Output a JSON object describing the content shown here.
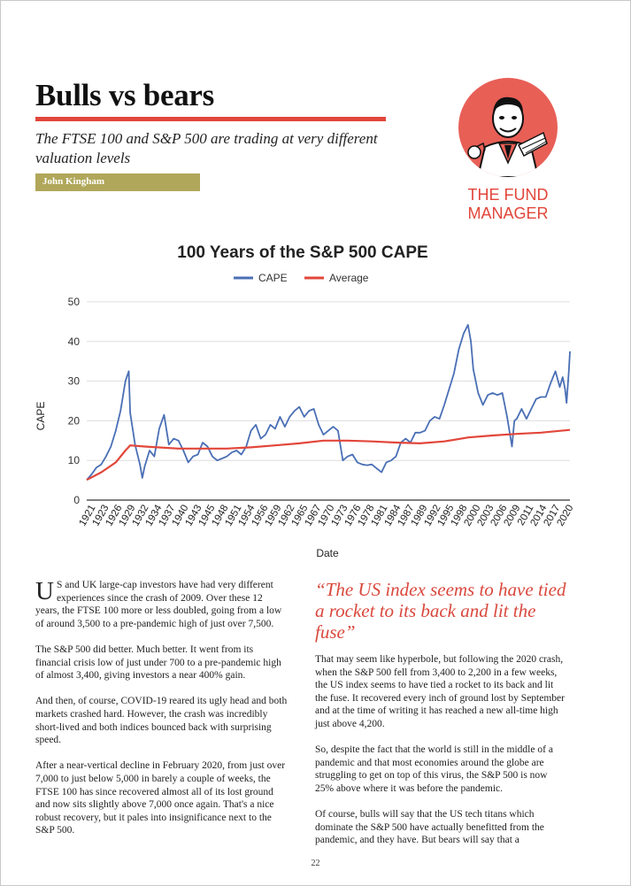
{
  "article": {
    "headline": "Bulls vs bears",
    "standfirst": "The FTSE 100 and S&P 500 are trading at very different valuation levels",
    "byline": "John Kingham",
    "pull_quote": "“The US index seems to have tied a rocket to its back and lit the fuse”",
    "page_number": "22"
  },
  "logo": {
    "text": "THE FUND MANAGER",
    "icon": "fund-manager-cartoon-icon",
    "color": "#e2463a"
  },
  "body": {
    "left": {
      "drop_cap": "U",
      "p1": "S and UK large-cap investors have had very different experiences since the crash of 2009. Over these 12 years, the FTSE 100 more or less doubled, going from a low of around 3,500 to a pre-pandemic high of just over 7,500.",
      "p2": "The S&P 500 did better. Much better. It went from its financial crisis low of just under 700 to a pre-pandemic high of almost 3,400, giving investors a near 400% gain.",
      "p3": "And then, of course, COVID-19 reared its ugly head and both markets crashed hard. However, the crash was incredibly short-lived and both indices bounced back with surprising speed.",
      "p4": "After a near-vertical decline in February 2020, from just over 7,000 to just below 5,000 in barely a couple of weeks, the FTSE 100 has since recovered almost all of its lost ground and now sits slightly above 7,000 once again. That's a nice robust recovery, but it pales into insignificance next to the S&P 500."
    },
    "right": {
      "p1": "That may seem like hyperbole, but following the 2020 crash, when the S&P 500 fell from 3,400 to 2,200 in a few weeks, the US index seems to have tied a rocket to its back and lit the fuse. It recovered every inch of ground lost by September and at the time of writing it has reached a new all-time high just above 4,200.",
      "p2": "So, despite the fact that the world is still in the middle of a pandemic and that most economies around the globe are struggling to get on top of this virus, the S&P 500 is now 25% above where it was before the pandemic.",
      "p3": "Of course, bulls will say that the US tech titans which dominate the S&P 500 have actually benefitted from the pandemic, and they have. But bears will say that a"
    }
  },
  "chart_data": {
    "type": "line",
    "title": "100 Years of the S&P 500 CAPE",
    "xlabel": "Date",
    "ylabel": "CAPE",
    "ylim": [
      0,
      50
    ],
    "yticks": [
      0,
      10,
      20,
      30,
      40,
      50
    ],
    "xlim": [
      1921,
      2021
    ],
    "xticks": [
      "1921",
      "1923",
      "1926",
      "1929",
      "1932",
      "1934",
      "1937",
      "1940",
      "1943",
      "1945",
      "1948",
      "1951",
      "1954",
      "1956",
      "1959",
      "1962",
      "1965",
      "1967",
      "1970",
      "1973",
      "1976",
      "1978",
      "1981",
      "1984",
      "1987",
      "1989",
      "1992",
      "1995",
      "1998",
      "2000",
      "2003",
      "2006",
      "2009",
      "2011",
      "2014",
      "2017",
      "2020"
    ],
    "grid": true,
    "legend_position": "top-center",
    "series": [
      {
        "name": "CAPE",
        "color": "#4a6fb5",
        "x": [
          1921,
          1922,
          1923,
          1924,
          1925,
          1926,
          1927,
          1928,
          1929,
          1929.7,
          1930,
          1931,
          1932,
          1932.5,
          1933,
          1934,
          1935,
          1936,
          1937,
          1938,
          1939,
          1940,
          1941,
          1942,
          1943,
          1944,
          1945,
          1946,
          1947,
          1948,
          1949,
          1950,
          1951,
          1952,
          1953,
          1954,
          1955,
          1956,
          1957,
          1958,
          1959,
          1960,
          1961,
          1962,
          1963,
          1964,
          1965,
          1966,
          1967,
          1968,
          1969,
          1970,
          1971,
          1972,
          1973,
          1974,
          1975,
          1976,
          1977,
          1978,
          1979,
          1980,
          1981,
          1982,
          1983,
          1984,
          1985,
          1986,
          1987,
          1988,
          1989,
          1990,
          1991,
          1992,
          1993,
          1994,
          1995,
          1996,
          1997,
          1998,
          1999,
          1999.9,
          2000.5,
          2001,
          2002,
          2003,
          2004,
          2005,
          2006,
          2007,
          2008,
          2009,
          2009.5,
          2010,
          2011,
          2012,
          2013,
          2014,
          2015,
          2016,
          2017,
          2018,
          2018.9,
          2019.5,
          2020,
          2020.3,
          2020.8,
          2021
        ],
        "values": [
          5.1,
          6.5,
          8.2,
          9.0,
          11.0,
          13.5,
          17.5,
          22.5,
          30.0,
          32.5,
          22.0,
          14.0,
          9.0,
          5.6,
          8.5,
          12.5,
          11.0,
          18.0,
          21.5,
          14.0,
          15.5,
          15.0,
          12.5,
          9.5,
          11.0,
          11.5,
          14.5,
          13.5,
          11.0,
          10.0,
          10.5,
          11.0,
          12.0,
          12.5,
          11.5,
          13.5,
          17.5,
          19.0,
          15.5,
          16.5,
          19.0,
          18.0,
          21.0,
          18.5,
          21.0,
          22.5,
          23.5,
          21.0,
          22.5,
          23.0,
          19.0,
          16.5,
          17.5,
          18.5,
          17.5,
          10.0,
          11.0,
          11.5,
          9.5,
          9.0,
          8.8,
          9.0,
          8.0,
          7.0,
          9.5,
          10.0,
          11.0,
          14.5,
          15.5,
          14.5,
          17.0,
          17.0,
          17.5,
          20.0,
          21.0,
          20.5,
          24.0,
          28.0,
          32.0,
          38.0,
          42.0,
          44.2,
          40.0,
          33.0,
          27.0,
          24.0,
          26.5,
          27.0,
          26.5,
          27.0,
          21.0,
          13.5,
          20.0,
          20.5,
          23.0,
          20.5,
          23.0,
          25.5,
          26.0,
          26.0,
          29.5,
          32.5,
          28.5,
          31.0,
          28.0,
          24.5,
          33.0,
          37.5
        ]
      },
      {
        "name": "Average",
        "color": "#e2463a",
        "x": [
          1921,
          1924,
          1927,
          1929,
          1930,
          1933,
          1940,
          1950,
          1955,
          1960,
          1965,
          1970,
          1975,
          1980,
          1985,
          1990,
          1995,
          2000,
          2005,
          2010,
          2015,
          2021
        ],
        "values": [
          5.1,
          7.0,
          9.5,
          12.5,
          13.8,
          13.5,
          13.0,
          13.0,
          13.3,
          13.8,
          14.3,
          15.0,
          15.0,
          14.8,
          14.5,
          14.3,
          14.8,
          15.8,
          16.3,
          16.7,
          17.0,
          17.7
        ]
      }
    ]
  }
}
